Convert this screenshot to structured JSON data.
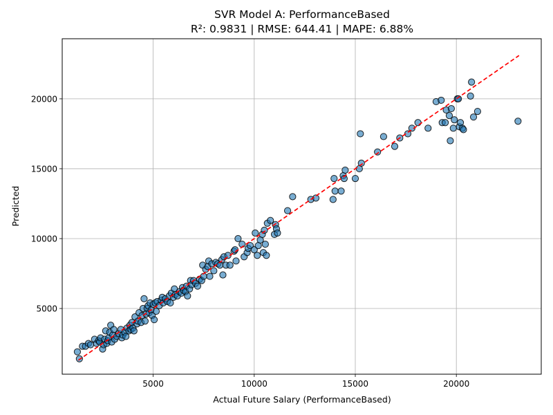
{
  "chart_data": {
    "type": "scatter",
    "title": "SVR Model A: PerformanceBased",
    "subtitle": "R²: 0.9831 | RMSE: 644.41 | MAPE: 6.88%",
    "xlabel": "Actual Future Salary (PerformanceBased)",
    "ylabel": "Predicted",
    "xlim": [
      500,
      24200
    ],
    "ylim": [
      300,
      24300
    ],
    "xticks": [
      5000,
      10000,
      15000,
      20000
    ],
    "yticks": [
      5000,
      10000,
      15000,
      20000
    ],
    "xtick_labels": [
      "5000",
      "10000",
      "15000",
      "20000"
    ],
    "ytick_labels": [
      "5000",
      "10000",
      "15000",
      "20000"
    ],
    "grid": true,
    "point_color": "#1f77b4",
    "point_edge_color": "#000000",
    "point_alpha": 0.6,
    "reference_line": {
      "style": "dashed",
      "color": "#ff0000",
      "from": [
        1300,
        1300
      ],
      "to": [
        23100,
        23100
      ]
    },
    "points": [
      [
        1250,
        1900
      ],
      [
        1350,
        1400
      ],
      [
        1500,
        2300
      ],
      [
        1650,
        2300
      ],
      [
        1800,
        2500
      ],
      [
        1900,
        2400
      ],
      [
        2100,
        2800
      ],
      [
        2200,
        2500
      ],
      [
        2300,
        2700
      ],
      [
        2350,
        2600
      ],
      [
        2400,
        2900
      ],
      [
        2500,
        2100
      ],
      [
        2550,
        2400
      ],
      [
        2600,
        2800
      ],
      [
        2650,
        3400
      ],
      [
        2700,
        2500
      ],
      [
        2750,
        2700
      ],
      [
        2800,
        2900
      ],
      [
        2850,
        3300
      ],
      [
        2900,
        3800
      ],
      [
        2950,
        2600
      ],
      [
        3000,
        3100
      ],
      [
        3050,
        3500
      ],
      [
        3100,
        2800
      ],
      [
        3200,
        3000
      ],
      [
        3300,
        3200
      ],
      [
        3400,
        3500
      ],
      [
        3450,
        2900
      ],
      [
        3500,
        3100
      ],
      [
        3600,
        3300
      ],
      [
        3650,
        3000
      ],
      [
        3700,
        3600
      ],
      [
        3800,
        3400
      ],
      [
        3850,
        3800
      ],
      [
        3900,
        3500
      ],
      [
        3950,
        4000
      ],
      [
        4000,
        3600
      ],
      [
        4050,
        3400
      ],
      [
        4100,
        4400
      ],
      [
        4200,
        3900
      ],
      [
        4250,
        4100
      ],
      [
        4300,
        4700
      ],
      [
        4400,
        4000
      ],
      [
        4450,
        4500
      ],
      [
        4500,
        5000
      ],
      [
        4550,
        5700
      ],
      [
        4600,
        4100
      ],
      [
        4650,
        4600
      ],
      [
        4700,
        5000
      ],
      [
        4750,
        5200
      ],
      [
        4800,
        4700
      ],
      [
        4850,
        5400
      ],
      [
        4900,
        4900
      ],
      [
        4950,
        4500
      ],
      [
        5000,
        5300
      ],
      [
        5050,
        4200
      ],
      [
        5100,
        5400
      ],
      [
        5150,
        4800
      ],
      [
        5200,
        5500
      ],
      [
        5300,
        5200
      ],
      [
        5400,
        5600
      ],
      [
        5450,
        5800
      ],
      [
        5500,
        5400
      ],
      [
        5600,
        5700
      ],
      [
        5700,
        5500
      ],
      [
        5800,
        5900
      ],
      [
        5850,
        5400
      ],
      [
        5900,
        6100
      ],
      [
        6000,
        5800
      ],
      [
        6050,
        6400
      ],
      [
        6100,
        6000
      ],
      [
        6200,
        5900
      ],
      [
        6300,
        6200
      ],
      [
        6400,
        6100
      ],
      [
        6450,
        6500
      ],
      [
        6500,
        6300
      ],
      [
        6600,
        6200
      ],
      [
        6650,
        6600
      ],
      [
        6700,
        5900
      ],
      [
        6800,
        6400
      ],
      [
        6850,
        7000
      ],
      [
        6900,
        6700
      ],
      [
        7000,
        7000
      ],
      [
        7100,
        6800
      ],
      [
        7200,
        6600
      ],
      [
        7300,
        7100
      ],
      [
        7400,
        7000
      ],
      [
        7450,
        8100
      ],
      [
        7500,
        7300
      ],
      [
        7600,
        7800
      ],
      [
        7700,
        8000
      ],
      [
        7750,
        8400
      ],
      [
        7800,
        7300
      ],
      [
        7900,
        8200
      ],
      [
        8000,
        7700
      ],
      [
        8100,
        8300
      ],
      [
        8200,
        8200
      ],
      [
        8300,
        8100
      ],
      [
        8400,
        8500
      ],
      [
        8450,
        7400
      ],
      [
        8500,
        8700
      ],
      [
        8600,
        8100
      ],
      [
        8700,
        8800
      ],
      [
        8800,
        8100
      ],
      [
        9000,
        9100
      ],
      [
        9050,
        9200
      ],
      [
        9100,
        8400
      ],
      [
        9200,
        10000
      ],
      [
        9400,
        9600
      ],
      [
        9500,
        8700
      ],
      [
        9650,
        9000
      ],
      [
        9700,
        9300
      ],
      [
        9800,
        9500
      ],
      [
        10000,
        9200
      ],
      [
        10050,
        10400
      ],
      [
        10150,
        8800
      ],
      [
        10200,
        9500
      ],
      [
        10300,
        9900
      ],
      [
        10400,
        10300
      ],
      [
        10450,
        9000
      ],
      [
        10500,
        10600
      ],
      [
        10550,
        9600
      ],
      [
        10600,
        8800
      ],
      [
        10650,
        11100
      ],
      [
        10800,
        11300
      ],
      [
        11000,
        10300
      ],
      [
        11050,
        11000
      ],
      [
        11100,
        10700
      ],
      [
        11150,
        10400
      ],
      [
        11650,
        12000
      ],
      [
        11900,
        13000
      ],
      [
        12800,
        12800
      ],
      [
        13050,
        12900
      ],
      [
        13900,
        12800
      ],
      [
        13950,
        14300
      ],
      [
        14000,
        13400
      ],
      [
        14300,
        13400
      ],
      [
        14400,
        14500
      ],
      [
        14450,
        14300
      ],
      [
        14500,
        14900
      ],
      [
        15000,
        14300
      ],
      [
        15200,
        15000
      ],
      [
        15250,
        17500
      ],
      [
        15300,
        15400
      ],
      [
        16100,
        16200
      ],
      [
        16400,
        17300
      ],
      [
        16950,
        16600
      ],
      [
        17200,
        17200
      ],
      [
        17600,
        17500
      ],
      [
        17800,
        17900
      ],
      [
        18100,
        18300
      ],
      [
        18600,
        17900
      ],
      [
        19000,
        19800
      ],
      [
        19250,
        19900
      ],
      [
        19300,
        18300
      ],
      [
        19450,
        18300
      ],
      [
        19500,
        19200
      ],
      [
        19650,
        18800
      ],
      [
        19700,
        17000
      ],
      [
        19750,
        19300
      ],
      [
        19850,
        17900
      ],
      [
        19900,
        18500
      ],
      [
        20050,
        20000
      ],
      [
        20100,
        20000
      ],
      [
        20150,
        18000
      ],
      [
        20200,
        18300
      ],
      [
        20300,
        17900
      ],
      [
        20350,
        17800
      ],
      [
        20700,
        20200
      ],
      [
        20750,
        21200
      ],
      [
        20850,
        18700
      ],
      [
        21050,
        19100
      ],
      [
        23050,
        18400
      ]
    ]
  }
}
